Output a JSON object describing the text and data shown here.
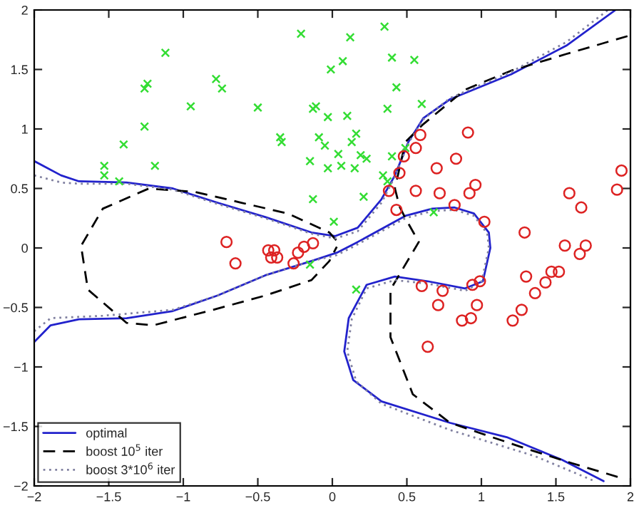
{
  "chart_data": {
    "type": "scatter",
    "xlim": [
      -2,
      2
    ],
    "ylim": [
      -2,
      2
    ],
    "xticks": [
      -2,
      -1.5,
      -1,
      -0.5,
      0,
      0.5,
      1,
      1.5,
      2
    ],
    "yticks": [
      -2,
      -1.5,
      -1,
      -0.5,
      0,
      0.5,
      1,
      1.5,
      2
    ],
    "grid": false,
    "legend": "bottom left",
    "series": [
      {
        "marker": "cross",
        "color": "#33dd33",
        "x": [
          -1.12,
          -0.78,
          -0.74,
          -1.26,
          -1.24,
          -0.95,
          -0.5,
          -1.26,
          -1.4,
          -1.53,
          -1.53,
          -1.19,
          -1.43,
          -0.21,
          -0.01,
          -0.13,
          -0.11,
          -0.03,
          -0.09,
          -0.05,
          0.04,
          -0.15,
          -0.03,
          -0.35,
          -0.34,
          -0.13,
          0.01,
          0.35,
          0.12,
          0.4,
          0.55,
          0.07,
          0.43,
          0.6,
          0.37,
          0.1,
          0.16,
          0.13,
          0.19,
          0.23,
          0.06,
          0.15,
          0.34,
          0.37,
          0.4,
          0.49,
          0.21,
          0.68,
          0.16,
          -0.15
        ],
        "values": [
          1.64,
          1.42,
          1.34,
          1.34,
          1.38,
          1.19,
          1.18,
          1.02,
          0.87,
          0.69,
          0.61,
          0.69,
          0.56,
          1.8,
          1.5,
          1.17,
          1.19,
          1.1,
          0.93,
          0.86,
          0.79,
          0.73,
          0.67,
          0.93,
          0.89,
          0.41,
          0.22,
          1.86,
          1.77,
          1.6,
          1.58,
          1.57,
          1.35,
          1.21,
          1.17,
          1.11,
          0.96,
          0.89,
          0.78,
          0.75,
          0.69,
          0.67,
          0.61,
          0.56,
          0.77,
          0.84,
          0.43,
          0.3,
          -0.35,
          -0.14
        ]
      },
      {
        "marker": "circle",
        "color": "#dd2222",
        "x": [
          -0.71,
          -0.43,
          -0.39,
          -0.23,
          -0.19,
          -0.13,
          -0.65,
          -0.41,
          -0.37,
          -0.26,
          0.59,
          0.91,
          0.56,
          0.48,
          0.83,
          0.45,
          0.7,
          1.94,
          0.96,
          0.92,
          0.72,
          0.56,
          0.38,
          1.59,
          1.91,
          1.67,
          0.43,
          0.82,
          1.02,
          1.29,
          1.56,
          1.7,
          1.66,
          0.6,
          0.74,
          0.94,
          0.99,
          0.71,
          0.97,
          0.87,
          0.93,
          0.64,
          1.3,
          1.36,
          1.27,
          1.21,
          1.43,
          1.47,
          1.52
        ],
        "values": [
          0.05,
          -0.02,
          -0.02,
          -0.04,
          0.01,
          0.04,
          -0.13,
          -0.08,
          -0.08,
          -0.13,
          0.95,
          0.97,
          0.84,
          0.77,
          0.75,
          0.63,
          0.67,
          0.65,
          0.53,
          0.46,
          0.46,
          0.48,
          0.48,
          0.46,
          0.49,
          0.34,
          0.32,
          0.36,
          0.22,
          0.13,
          0.02,
          0.02,
          -0.05,
          -0.32,
          -0.36,
          -0.31,
          -0.28,
          -0.48,
          -0.48,
          -0.61,
          -0.59,
          -0.83,
          -0.24,
          -0.38,
          -0.52,
          -0.61,
          -0.29,
          -0.2,
          -0.2
        ]
      },
      {
        "type": "line",
        "name": "optimal",
        "color": "#2222cc",
        "line_style": "solid",
        "x": [
          -2.0,
          -1.82,
          -1.7,
          -1.38,
          -1.07,
          -0.77,
          -0.45,
          -0.14,
          0.02,
          0.17,
          0.33,
          0.42,
          0.51,
          0.61,
          0.79,
          1.2,
          1.57,
          1.9
        ],
        "values": [
          0.73,
          0.61,
          0.56,
          0.55,
          0.5,
          0.38,
          0.26,
          0.13,
          0.1,
          0.17,
          0.41,
          0.61,
          0.89,
          1.09,
          1.25,
          1.46,
          1.7,
          2.0
        ]
      },
      {
        "type": "line",
        "color": "#2222cc",
        "line_style": "solid",
        "x": [
          -2.0,
          -1.89,
          -1.7,
          -1.38,
          -1.07,
          -0.77,
          -0.45,
          -0.14,
          0.03,
          0.17,
          0.49,
          0.67,
          0.82,
          0.95,
          1.05,
          1.06,
          1.01,
          0.89,
          0.64,
          0.42,
          0.23,
          0.11,
          0.08,
          0.14,
          0.33,
          0.79,
          1.17,
          1.54,
          1.82
        ],
        "values": [
          -0.79,
          -0.65,
          -0.6,
          -0.59,
          -0.53,
          -0.4,
          -0.23,
          -0.11,
          -0.04,
          0.05,
          0.27,
          0.33,
          0.34,
          0.29,
          0.13,
          0.0,
          -0.28,
          -0.34,
          -0.28,
          -0.24,
          -0.31,
          -0.59,
          -0.87,
          -1.11,
          -1.29,
          -1.47,
          -1.59,
          -1.78,
          -1.96
        ]
      },
      {
        "type": "line",
        "name": "boost 10$^{5}$ iter",
        "color": "#000000",
        "line_style": "dashed",
        "x": [
          1.98,
          1.57,
          1.2,
          0.89,
          0.61,
          0.49,
          0.42,
          0.45,
          0.49,
          0.58,
          0.39,
          0.39,
          0.54,
          0.79,
          1.26,
          1.61,
          1.93
        ],
        "values": [
          1.78,
          1.63,
          1.49,
          1.33,
          1.04,
          0.89,
          0.5,
          0.35,
          0.25,
          0.05,
          -0.35,
          -0.75,
          -1.23,
          -1.47,
          -1.67,
          -1.81,
          -1.93
        ]
      },
      {
        "type": "line",
        "color": "#000000",
        "line_style": "dashed",
        "x": [
          -1.68,
          -1.64,
          -1.38,
          -1.2,
          -0.77,
          -0.45,
          -0.14,
          -0.02,
          0.03
        ],
        "values": [
          -0.03,
          -0.35,
          -0.63,
          -0.65,
          -0.51,
          -0.4,
          -0.27,
          -0.11,
          0.01
        ]
      },
      {
        "type": "line",
        "color": "#000000",
        "line_style": "dashed",
        "x": [
          -1.68,
          -1.54,
          -1.23,
          -0.92,
          -0.61,
          -0.3,
          -0.02,
          0.03
        ],
        "values": [
          0.03,
          0.33,
          0.5,
          0.47,
          0.38,
          0.29,
          0.13,
          0.06
        ]
      },
      {
        "type": "line",
        "name": "boost 3*10$^{6}$ iter",
        "color": "#8080a0",
        "line_style": "dotted",
        "x": [
          -2.0,
          -1.82,
          -1.7,
          -1.38,
          -1.07,
          -0.77,
          -0.45,
          -0.14,
          0.02,
          0.17,
          0.33,
          0.42,
          0.51,
          0.61,
          0.79,
          1.2,
          1.57,
          1.85
        ],
        "values": [
          0.61,
          0.55,
          0.54,
          0.54,
          0.49,
          0.37,
          0.25,
          0.12,
          0.08,
          0.14,
          0.38,
          0.6,
          0.88,
          1.08,
          1.26,
          1.48,
          1.73,
          2.0
        ]
      },
      {
        "type": "line",
        "color": "#8080a0",
        "line_style": "dotted",
        "x": [
          -2.0,
          -1.89,
          -1.54,
          -1.07,
          -0.77,
          -0.45,
          -0.14,
          0.03,
          0.17,
          0.49,
          0.67,
          0.82,
          0.95,
          1.04,
          1.05,
          1.0,
          0.89,
          0.64,
          0.42,
          0.23,
          0.13,
          0.1,
          0.16,
          0.33,
          0.79,
          1.36,
          1.76
        ],
        "values": [
          -0.7,
          -0.59,
          -0.57,
          -0.52,
          -0.4,
          -0.23,
          -0.11,
          -0.06,
          0.03,
          0.25,
          0.31,
          0.32,
          0.27,
          0.12,
          0.0,
          -0.29,
          -0.36,
          -0.3,
          -0.27,
          -0.34,
          -0.6,
          -0.87,
          -1.12,
          -1.31,
          -1.53,
          -1.75,
          -1.96
        ]
      }
    ]
  }
}
